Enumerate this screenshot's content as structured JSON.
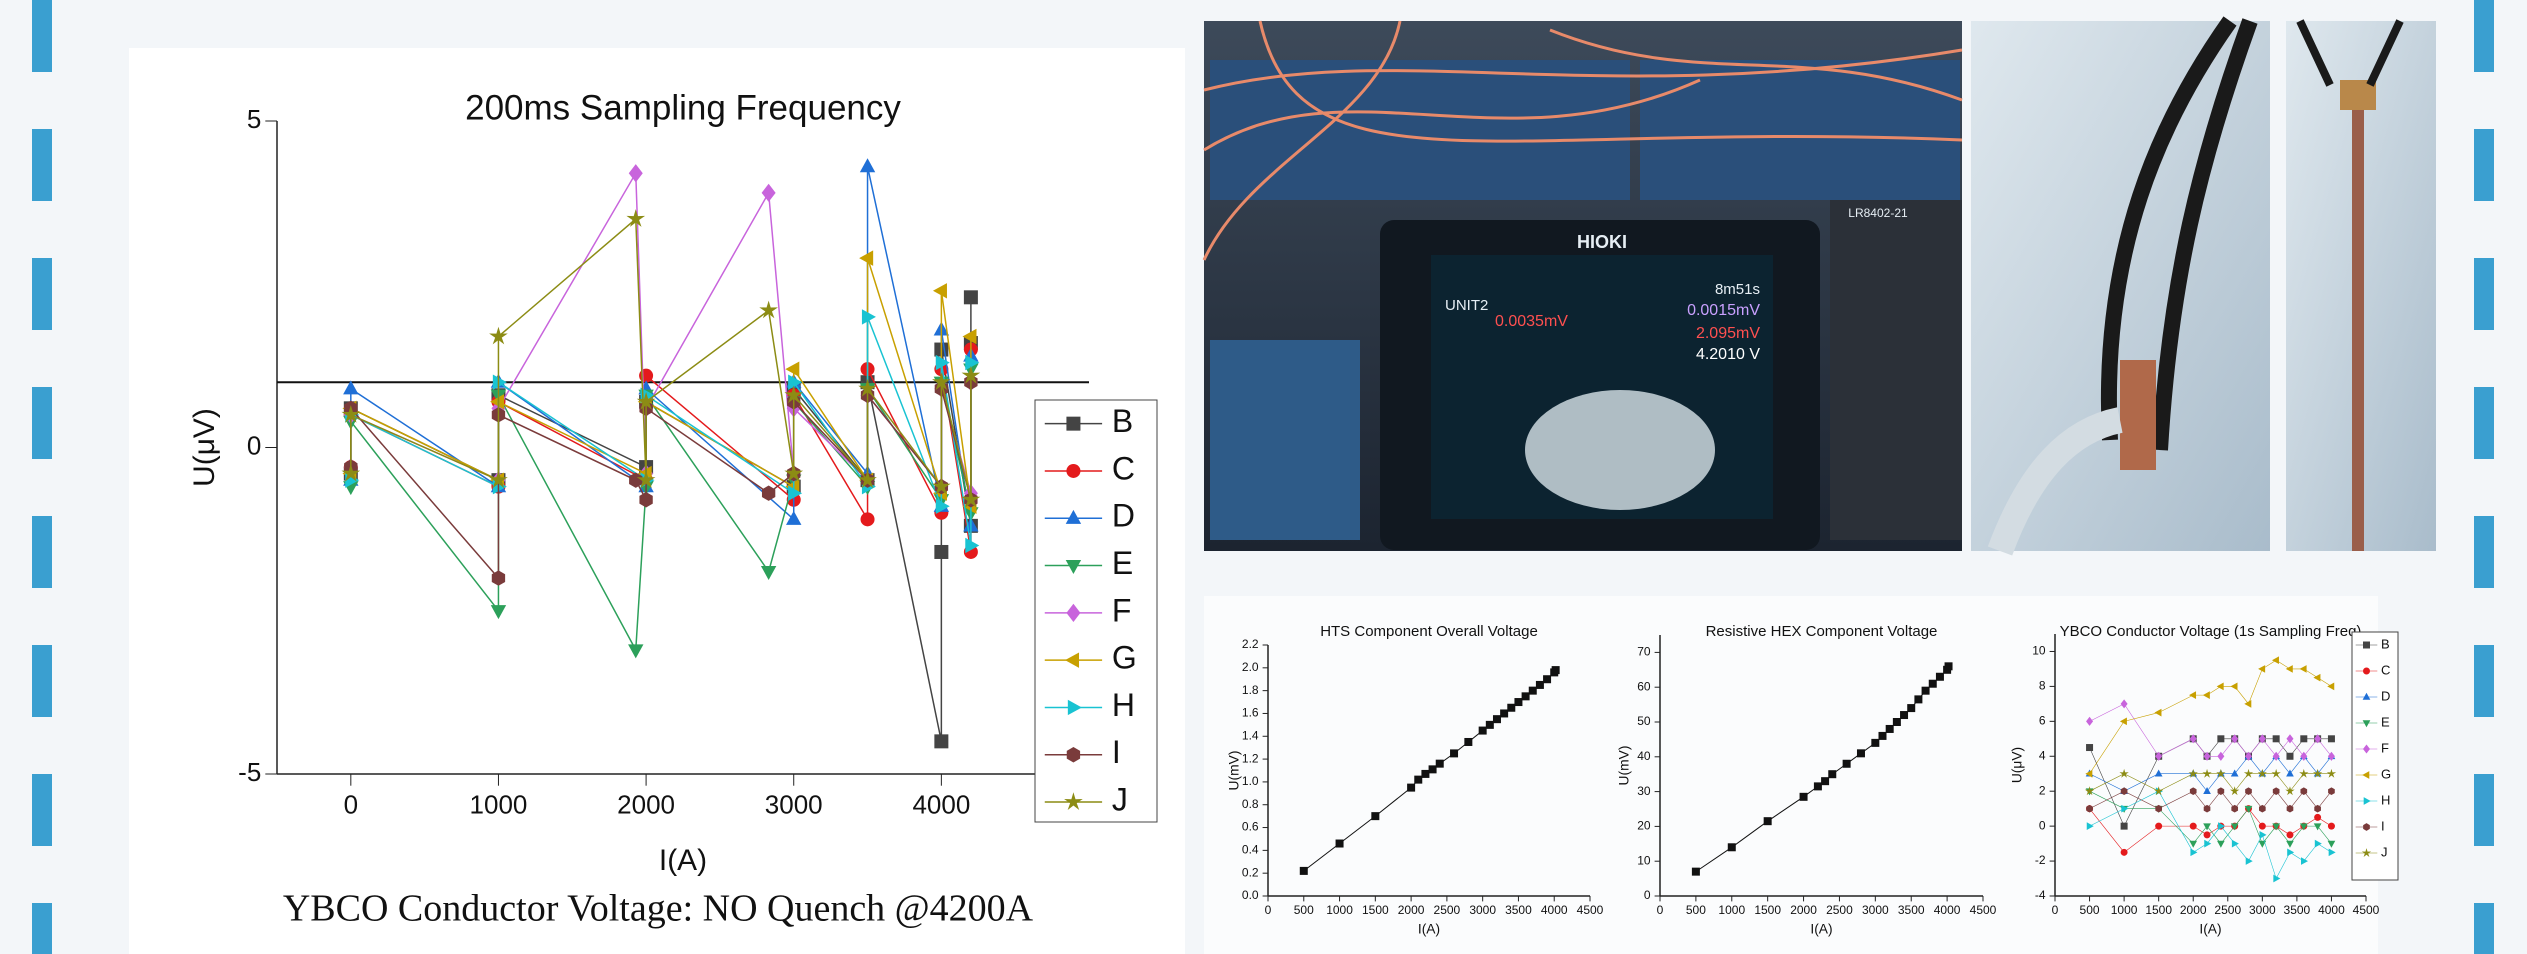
{
  "chart_data": [
    {
      "type": "line",
      "title": "200ms Sampling Frequency",
      "x_label": "I(A)",
      "y_label": "U(μV)",
      "xlim": [
        -500,
        5000
      ],
      "xticks": [
        0,
        1000,
        2000,
        3000,
        4000
      ],
      "ylim": [
        -5,
        5
      ],
      "yticks": [
        -5,
        0,
        5
      ],
      "reference_line": 1,
      "legend": "right",
      "series": [
        {
          "name": "B",
          "color": "#444444",
          "marker": "square",
          "x": [
            0,
            0,
            1000,
            1000,
            2000,
            2000,
            3000,
            3000,
            3500,
            3500,
            4000,
            4000,
            4000,
            4200,
            4200,
            4200
          ],
          "values": [
            -0.4,
            0.6,
            -0.5,
            0.8,
            -0.3,
            0.7,
            -0.6,
            0.9,
            -0.5,
            1.0,
            -4.5,
            -1.6,
            1.5,
            -1.2,
            1.6,
            2.3
          ]
        },
        {
          "name": "C",
          "color": "#e41a1c",
          "marker": "circle",
          "x": [
            0,
            0,
            1000,
            1000,
            2000,
            2000,
            3000,
            3000,
            3500,
            3500,
            4000,
            4000,
            4200,
            4200
          ],
          "values": [
            -0.3,
            0.5,
            -0.6,
            0.7,
            -0.5,
            1.1,
            -0.8,
            0.8,
            -1.1,
            1.2,
            -1.0,
            1.2,
            -1.6,
            1.5
          ]
        },
        {
          "name": "D",
          "color": "#1f6fd6",
          "marker": "triangle-up",
          "x": [
            0,
            0,
            1000,
            1000,
            2000,
            2000,
            3000,
            3000,
            3500,
            3500,
            4000,
            4000,
            4200,
            4200
          ],
          "values": [
            -0.5,
            0.9,
            -0.6,
            1.0,
            -0.6,
            0.9,
            -1.1,
            1.0,
            -0.4,
            4.3,
            -0.9,
            1.8,
            -1.2,
            1.4
          ]
        },
        {
          "name": "E",
          "color": "#2ca05a",
          "marker": "triangle-down",
          "x": [
            0,
            0,
            1000,
            1000,
            1930,
            2000,
            2000,
            2830,
            3000,
            3000,
            3500,
            3500,
            4000,
            4000,
            4200,
            4200
          ],
          "values": [
            -0.6,
            0.4,
            -2.5,
            0.8,
            -3.1,
            -0.6,
            0.8,
            -1.9,
            -0.5,
            0.7,
            -0.6,
            0.9,
            -0.8,
            1.0,
            -1.0,
            1.2
          ]
        },
        {
          "name": "F",
          "color": "#c864dc",
          "marker": "diamond",
          "x": [
            0,
            0,
            1000,
            1000,
            1930,
            2000,
            2000,
            2830,
            3000,
            3000,
            3500,
            3500,
            4000,
            4000,
            4200,
            4200
          ],
          "values": [
            -0.3,
            0.5,
            -0.5,
            0.6,
            4.2,
            -0.4,
            0.6,
            3.9,
            -0.4,
            0.6,
            -0.5,
            0.8,
            -0.6,
            0.9,
            -0.7,
            1.0
          ]
        },
        {
          "name": "G",
          "color": "#c8a000",
          "marker": "triangle-left",
          "x": [
            0,
            0,
            1000,
            1000,
            2000,
            2000,
            3000,
            3000,
            3500,
            3500,
            4000,
            4000,
            4200,
            4200
          ],
          "values": [
            -0.4,
            0.6,
            -0.5,
            0.7,
            -0.4,
            0.7,
            -0.6,
            1.2,
            -0.5,
            2.9,
            -0.7,
            2.4,
            -0.9,
            1.7
          ]
        },
        {
          "name": "H",
          "color": "#19c3d2",
          "marker": "triangle-right",
          "x": [
            0,
            0,
            1000,
            1000,
            2000,
            2000,
            3000,
            3000,
            3500,
            3500,
            4000,
            4000,
            4200,
            4200
          ],
          "values": [
            -0.5,
            0.5,
            -0.6,
            1.0,
            -0.5,
            0.8,
            -0.7,
            1.0,
            -0.6,
            2.0,
            -0.9,
            1.3,
            -1.5,
            1.3
          ]
        },
        {
          "name": "I",
          "color": "#7a3b3b",
          "marker": "hexagon",
          "x": [
            0,
            0,
            1000,
            1000,
            1930,
            2000,
            2000,
            2830,
            3000,
            3000,
            3500,
            3500,
            4000,
            4000,
            4200,
            4200
          ],
          "values": [
            -0.3,
            0.6,
            -2.0,
            0.5,
            -0.5,
            -0.8,
            0.6,
            -0.7,
            -0.4,
            0.7,
            -0.5,
            0.8,
            -0.6,
            0.9,
            -0.8,
            1.0
          ]
        },
        {
          "name": "J",
          "color": "#8c8c14",
          "marker": "star",
          "x": [
            0,
            0,
            1000,
            1000,
            1930,
            2000,
            2000,
            2830,
            3000,
            3000,
            3500,
            3500,
            4000,
            4000,
            4200,
            4200
          ],
          "values": [
            -0.4,
            0.5,
            -0.5,
            1.7,
            3.5,
            -0.5,
            0.7,
            2.1,
            -0.4,
            0.8,
            -0.5,
            0.9,
            -0.6,
            1.0,
            -0.8,
            1.1
          ]
        }
      ]
    },
    {
      "type": "line",
      "title": "HTS Component Overall Voltage",
      "x_label": "I(A)",
      "y_label": "U(mV)",
      "xlim": [
        0,
        4500
      ],
      "xticks": [
        0,
        500,
        1000,
        1500,
        2000,
        2500,
        3000,
        3500,
        4000,
        4500
      ],
      "ylim": [
        0,
        2.2
      ],
      "yticks": [
        {
          "value": 0,
          "label": "0.0"
        },
        0.2,
        0.4,
        0.6,
        0.8,
        {
          "value": 1,
          "label": "1.0"
        },
        1.2,
        1.4,
        1.6,
        1.8,
        {
          "value": 2,
          "label": "2.0"
        },
        2.2
      ],
      "color": "#111111",
      "marker": "square",
      "x": [
        500,
        1000,
        1500,
        2000,
        2100,
        2200,
        2300,
        2400,
        2600,
        2800,
        3000,
        3100,
        3200,
        3300,
        3400,
        3500,
        3600,
        3700,
        3800,
        3900,
        4000,
        4020
      ],
      "values": [
        0.22,
        0.46,
        0.7,
        0.95,
        1.02,
        1.07,
        1.11,
        1.16,
        1.25,
        1.35,
        1.45,
        1.5,
        1.55,
        1.6,
        1.65,
        1.7,
        1.75,
        1.8,
        1.85,
        1.9,
        1.96,
        1.98
      ]
    },
    {
      "type": "line",
      "title": "Resistive HEX Component Voltage",
      "x_label": "I(A)",
      "y_label": "U(mV)",
      "xlim": [
        0,
        4500
      ],
      "xticks": [
        0,
        500,
        1000,
        1500,
        2000,
        2500,
        3000,
        3500,
        4000,
        4500
      ],
      "ylim": [
        0,
        75
      ],
      "yticks": [
        0,
        10,
        20,
        30,
        40,
        50,
        60,
        70
      ],
      "color": "#111111",
      "marker": "square",
      "x": [
        500,
        1000,
        1500,
        2000,
        2200,
        2300,
        2400,
        2600,
        2800,
        3000,
        3100,
        3200,
        3300,
        3400,
        3500,
        3600,
        3700,
        3800,
        3900,
        4000,
        4020
      ],
      "values": [
        7,
        14,
        21.5,
        28.5,
        31.5,
        33,
        35,
        38,
        41,
        44,
        46,
        48,
        50,
        52,
        54,
        56.5,
        59,
        61,
        63,
        65,
        66
      ]
    },
    {
      "type": "line",
      "title": "YBCO Conductor Voltage (1s Sampling Freq)",
      "x_label": "I(A)",
      "y_label": "U(μV)",
      "xlim": [
        0,
        4500
      ],
      "xticks": [
        0,
        500,
        1000,
        1500,
        2000,
        2500,
        3000,
        3500,
        4000,
        4500
      ],
      "ylim": [
        -4,
        11
      ],
      "yticks": [
        -4,
        -2,
        0,
        2,
        4,
        6,
        8,
        10
      ],
      "legend": "right",
      "x": [
        500,
        1000,
        1500,
        2000,
        2200,
        2400,
        2600,
        2800,
        3000,
        3200,
        3400,
        3600,
        3800,
        4000
      ],
      "series": [
        {
          "name": "B",
          "color": "#444444",
          "marker": "square",
          "values": [
            4.5,
            0,
            4,
            5,
            4,
            5,
            5,
            4,
            5,
            5,
            4,
            5,
            5,
            5
          ]
        },
        {
          "name": "C",
          "color": "#e41a1c",
          "marker": "circle",
          "values": [
            1,
            -1.5,
            0,
            0,
            -0.5,
            0,
            0,
            1,
            0,
            0,
            -0.5,
            0,
            0.5,
            0
          ]
        },
        {
          "name": "D",
          "color": "#1f6fd6",
          "marker": "triangle-up",
          "values": [
            3,
            2,
            3,
            3,
            2,
            3,
            3,
            4,
            3,
            4,
            3,
            4,
            3,
            4
          ]
        },
        {
          "name": "E",
          "color": "#2ca05a",
          "marker": "triangle-down",
          "values": [
            2,
            1,
            1,
            -1,
            0,
            -1,
            0,
            1,
            -1,
            0,
            -1,
            0,
            0,
            -1
          ]
        },
        {
          "name": "F",
          "color": "#c864dc",
          "marker": "diamond",
          "values": [
            6,
            7,
            4,
            5,
            4,
            4,
            5,
            4,
            5,
            4,
            5,
            4,
            5,
            4
          ]
        },
        {
          "name": "G",
          "color": "#c8a000",
          "marker": "triangle-left",
          "values": [
            3,
            6,
            6.5,
            7.5,
            7.5,
            8,
            8,
            7,
            9,
            9.5,
            9,
            9,
            8.5,
            8
          ]
        },
        {
          "name": "H",
          "color": "#19c3d2",
          "marker": "triangle-right",
          "values": [
            0,
            1,
            2,
            -1.5,
            -1,
            0,
            -1,
            -2,
            -0.5,
            -3,
            -1.5,
            -2,
            -1,
            -1.5
          ]
        },
        {
          "name": "I",
          "color": "#7a3b3b",
          "marker": "hexagon",
          "values": [
            1,
            2,
            1,
            2,
            1,
            2,
            1,
            2,
            1,
            2,
            1,
            2,
            1,
            2
          ]
        },
        {
          "name": "J",
          "color": "#8c8c14",
          "marker": "star",
          "values": [
            2,
            3,
            2,
            3,
            3,
            3,
            2,
            3,
            3,
            3,
            2,
            3,
            3,
            3
          ]
        }
      ]
    }
  ],
  "caption": "YBCO Conductor Voltage: NO Quench @4200A",
  "photos": {
    "brand": "HIOKI",
    "model": "LR8402-21",
    "screen": [
      "UNIT2",
      "8m51s",
      "0.0035mV",
      "0.0015mV",
      "2.095mV",
      "4.2010 V"
    ]
  }
}
